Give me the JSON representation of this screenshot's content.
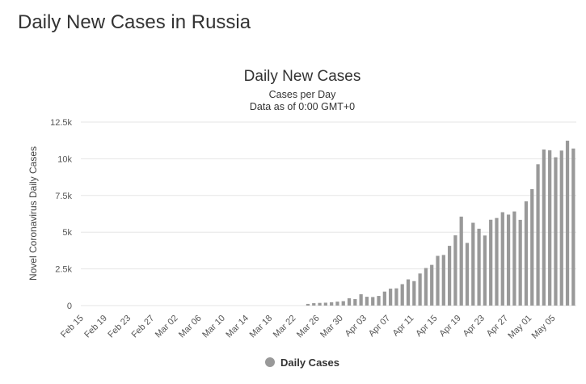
{
  "page": {
    "title": "Daily New Cases in Russia"
  },
  "chart_data": {
    "type": "bar",
    "title": "Daily New Cases",
    "subtitle_lines": [
      "Cases per Day",
      "Data as of 0:00 GMT+0"
    ],
    "xlabel": "",
    "ylabel": "Novel Coronavirus Daily Cases",
    "ylim": [
      0,
      12500
    ],
    "yticks": [
      0,
      2500,
      5000,
      7500,
      10000,
      12500
    ],
    "ytick_labels": [
      "0",
      "2.5k",
      "5k",
      "7.5k",
      "10k",
      "12.5k"
    ],
    "grid": true,
    "legend": {
      "label": "Daily Cases",
      "position": "bottom-center"
    },
    "bar_color": "#999999",
    "start_date": "Feb 15",
    "xtick_every": 4,
    "xtick_labels": [
      "Feb 15",
      "Feb 19",
      "Feb 23",
      "Feb 27",
      "Mar 02",
      "Mar 06",
      "Mar 10",
      "Mar 14",
      "Mar 18",
      "Mar 22",
      "Mar 26",
      "Mar 30",
      "Apr 03",
      "Apr 07",
      "Apr 11",
      "Apr 15",
      "Apr 19",
      "Apr 23",
      "Apr 27",
      "May 01",
      "May 05"
    ],
    "values": [
      0,
      0,
      0,
      0,
      0,
      0,
      0,
      0,
      0,
      0,
      0,
      0,
      0,
      0,
      0,
      0,
      0,
      0,
      0,
      0,
      0,
      0,
      0,
      0,
      0,
      0,
      0,
      0,
      0,
      0,
      0,
      0,
      0,
      0,
      0,
      0,
      0,
      0,
      114,
      163,
      182,
      196,
      228,
      270,
      302,
      501,
      440,
      771,
      601,
      582,
      658,
      954,
      1154,
      1175,
      1459,
      1786,
      1667,
      2186,
      2558,
      2774,
      3388,
      3448,
      4070,
      4785,
      6060,
      4268,
      5642,
      5236,
      4774,
      5849,
      5966,
      6361,
      6198,
      6411,
      5841,
      7099,
      7933,
      9623,
      10633,
      10581,
      10102,
      10559,
      11231,
      10699
    ]
  }
}
